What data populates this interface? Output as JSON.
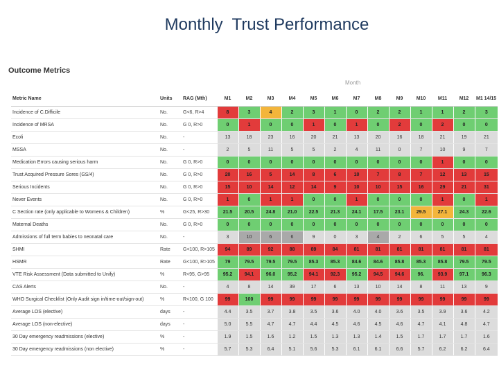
{
  "slide_title": "Monthly  Trust Performance",
  "section_title": "Outcome Metrics",
  "month_label": "Month",
  "table": {
    "headers": [
      "Metric Name",
      "Units",
      "RAG (Mth)",
      "M1",
      "M2",
      "M3",
      "M4",
      "M5",
      "M6",
      "M7",
      "M8",
      "M9",
      "M10",
      "M11",
      "M12",
      "M1 14/15"
    ],
    "rows": [
      {
        "name": "Incidence of C.Difficile",
        "units": "No.",
        "rag": "G<6, R>4",
        "values": [
          "8",
          "3",
          "4",
          "2",
          "3",
          "1",
          "0",
          "2",
          "2",
          "1",
          "1",
          "2",
          "3"
        ],
        "colors": [
          "r",
          "g",
          "a",
          "g",
          "g",
          "g",
          "g",
          "g",
          "g",
          "g",
          "g",
          "g",
          "g"
        ]
      },
      {
        "name": "Incidence of MRSA",
        "units": "No.",
        "rag": "G 0, R>0",
        "values": [
          "0",
          "1",
          "0",
          "0",
          "1",
          "0",
          "1",
          "0",
          "2",
          "0",
          "2",
          "0",
          "0"
        ],
        "colors": [
          "g",
          "r",
          "g",
          "g",
          "r",
          "g",
          "r",
          "g",
          "r",
          "g",
          "r",
          "g",
          "g"
        ]
      },
      {
        "name": "Ecoli",
        "units": "No.",
        "rag": "-",
        "values": [
          "13",
          "18",
          "23",
          "16",
          "20",
          "21",
          "13",
          "20",
          "16",
          "18",
          "21",
          "19",
          "21"
        ],
        "colors": [
          "k",
          "k",
          "k",
          "k",
          "k",
          "k",
          "k",
          "k",
          "k",
          "k",
          "k",
          "k",
          "k"
        ]
      },
      {
        "name": "MSSA",
        "units": "No.",
        "rag": "-",
        "values": [
          "2",
          "5",
          "11",
          "5",
          "5",
          "2",
          "4",
          "11",
          "0",
          "7",
          "10",
          "9",
          "7"
        ],
        "colors": [
          "k",
          "k",
          "k",
          "k",
          "k",
          "k",
          "k",
          "k",
          "k",
          "k",
          "k",
          "k",
          "k"
        ]
      },
      {
        "name": "Medication Errors causing serious harm",
        "units": "No.",
        "rag": "G 0, R>0",
        "values": [
          "0",
          "0",
          "0",
          "0",
          "0",
          "0",
          "0",
          "0",
          "0",
          "0",
          "1",
          "0",
          "0"
        ],
        "colors": [
          "g",
          "g",
          "g",
          "g",
          "g",
          "g",
          "g",
          "g",
          "g",
          "g",
          "r",
          "g",
          "g"
        ]
      },
      {
        "name": "Trust Acquired Pressure Sores (GS/4)",
        "units": "No.",
        "rag": "G 0, R>0",
        "values": [
          "20",
          "16",
          "5",
          "14",
          "8",
          "6",
          "10",
          "7",
          "8",
          "7",
          "12",
          "13",
          "15"
        ],
        "colors": [
          "r",
          "r",
          "r",
          "r",
          "r",
          "r",
          "r",
          "r",
          "r",
          "r",
          "r",
          "r",
          "r"
        ]
      },
      {
        "name": "Serious Incidents",
        "units": "No.",
        "rag": "G 0, R>0",
        "values": [
          "15",
          "10",
          "14",
          "12",
          "14",
          "9",
          "10",
          "10",
          "15",
          "16",
          "29",
          "21",
          "31"
        ],
        "colors": [
          "r",
          "r",
          "r",
          "r",
          "r",
          "r",
          "r",
          "r",
          "r",
          "r",
          "r",
          "r",
          "r"
        ]
      },
      {
        "name": "Never Events",
        "units": "No.",
        "rag": "G 0, R>0",
        "values": [
          "1",
          "0",
          "1",
          "1",
          "0",
          "0",
          "1",
          "0",
          "0",
          "0",
          "1",
          "0",
          "1"
        ],
        "colors": [
          "r",
          "g",
          "r",
          "r",
          "g",
          "g",
          "r",
          "g",
          "g",
          "g",
          "r",
          "g",
          "r"
        ]
      },
      {
        "name": "C Section rate (only applicable to Womens & Children)",
        "units": "%",
        "rag": "G<25, R>30",
        "values": [
          "21.5",
          "20.5",
          "24.8",
          "21.0",
          "22.5",
          "21.3",
          "24.1",
          "17.5",
          "23.1",
          "29.5",
          "27.1",
          "24.3",
          "22.6"
        ],
        "colors": [
          "g",
          "g",
          "g",
          "g",
          "g",
          "g",
          "g",
          "g",
          "g",
          "a",
          "a",
          "g",
          "g"
        ]
      },
      {
        "name": "Maternal Deaths",
        "units": "No.",
        "rag": "G 0, R>0",
        "values": [
          "0",
          "0",
          "0",
          "0",
          "0",
          "0",
          "0",
          "0",
          "0",
          "0",
          "0",
          "0",
          "0"
        ],
        "colors": [
          "g",
          "g",
          "g",
          "g",
          "g",
          "g",
          "g",
          "g",
          "g",
          "g",
          "g",
          "g",
          "g"
        ]
      },
      {
        "name": "Admissions of full term babies to neonatal care",
        "units": "No.",
        "rag": "-",
        "values": [
          "3",
          "10",
          "6",
          "6",
          "9",
          "0",
          "3",
          "4",
          "2",
          "6",
          "5",
          "5",
          "4"
        ],
        "colors": [
          "k",
          "d",
          "d",
          "d",
          "k",
          "k",
          "k",
          "d",
          "k",
          "k",
          "k",
          "k",
          "k"
        ]
      },
      {
        "name": "SHMI",
        "units": "Rate",
        "rag": "G<100, R>105",
        "values": [
          "94",
          "89",
          "92",
          "88",
          "89",
          "84",
          "81",
          "81",
          "81",
          "81",
          "81",
          "81",
          "81"
        ],
        "colors": [
          "r",
          "r",
          "r",
          "r",
          "r",
          "r",
          "r",
          "r",
          "r",
          "r",
          "r",
          "r",
          "r"
        ]
      },
      {
        "name": "HSMR",
        "units": "Rate",
        "rag": "G<100, R>105",
        "values": [
          "79",
          "79.5",
          "79.5",
          "79.5",
          "85.3",
          "85.3",
          "84.6",
          "84.6",
          "85.8",
          "85.3",
          "85.8",
          "79.5",
          "79.5"
        ],
        "colors": [
          "g",
          "g",
          "g",
          "g",
          "g",
          "g",
          "g",
          "g",
          "g",
          "g",
          "g",
          "g",
          "g"
        ]
      },
      {
        "name": "VTE Risk Assessment (Data submitted to Unify)",
        "units": "%",
        "rag": "R<95, G>95",
        "values": [
          "95.2",
          "94.1",
          "96.0",
          "95.2",
          "94.1",
          "92.3",
          "95.2",
          "94.5",
          "94.6",
          "96.",
          "93.9",
          "97.1",
          "96.3"
        ],
        "colors": [
          "g",
          "r",
          "g",
          "g",
          "r",
          "r",
          "g",
          "r",
          "r",
          "g",
          "r",
          "g",
          "g"
        ]
      },
      {
        "name": "CAS Alerts",
        "units": "No.",
        "rag": "-",
        "values": [
          "4",
          "8",
          "14",
          "39",
          "17",
          "6",
          "13",
          "10",
          "14",
          "8",
          "11",
          "13",
          "9"
        ],
        "colors": [
          "k",
          "k",
          "k",
          "k",
          "k",
          "k",
          "k",
          "k",
          "k",
          "k",
          "k",
          "k",
          "k"
        ]
      },
      {
        "name": "WHO Surgical Checklist (Only Audit sign in/time-out/sign-out)",
        "units": "%",
        "rag": "R<100, G 100",
        "values": [
          "99",
          "100",
          "99",
          "99",
          "99",
          "99",
          "99",
          "99",
          "99",
          "99",
          "99",
          "99",
          "99"
        ],
        "colors": [
          "r",
          "g",
          "r",
          "r",
          "r",
          "r",
          "r",
          "r",
          "r",
          "r",
          "r",
          "r",
          "r"
        ]
      },
      {
        "name": "Average LOS (elective)",
        "units": "days",
        "rag": "-",
        "values": [
          "4.4",
          "3.5",
          "3.7",
          "3.8",
          "3.5",
          "3.6",
          "4.0",
          "4.0",
          "3.6",
          "3.5",
          "3.9",
          "3.6",
          "4.2"
        ],
        "colors": [
          "k",
          "k",
          "k",
          "k",
          "k",
          "k",
          "k",
          "k",
          "k",
          "k",
          "k",
          "k",
          "k"
        ]
      },
      {
        "name": "Average LOS (non-elective)",
        "units": "days",
        "rag": "-",
        "values": [
          "5.0",
          "5.5",
          "4.7",
          "4.7",
          "4.4",
          "4.5",
          "4.6",
          "4.5",
          "4.6",
          "4.7",
          "4.1",
          "4.8",
          "4.7"
        ],
        "colors": [
          "k",
          "k",
          "k",
          "k",
          "k",
          "k",
          "k",
          "k",
          "k",
          "k",
          "k",
          "k",
          "k"
        ]
      },
      {
        "name": "30 Day emergency readmissions (elective)",
        "units": "%",
        "rag": "-",
        "values": [
          "1.9",
          "1.5",
          "1.6",
          "1.2",
          "1.5",
          "1.3",
          "1.3",
          "1.4",
          "1.5",
          "1.7",
          "1.7",
          "1.7",
          "1.6"
        ],
        "colors": [
          "k",
          "k",
          "k",
          "k",
          "k",
          "k",
          "k",
          "k",
          "k",
          "k",
          "k",
          "k",
          "k"
        ]
      },
      {
        "name": "30 Day emergency readmissions (non elective)",
        "units": "%",
        "rag": "-",
        "values": [
          "5.7",
          "5.3",
          "6.4",
          "5.1",
          "5.6",
          "5.3",
          "6.1",
          "6.1",
          "6.6",
          "5.7",
          "6.2",
          "6.2",
          "6.4"
        ],
        "colors": [
          "k",
          "k",
          "k",
          "k",
          "k",
          "k",
          "k",
          "k",
          "k",
          "k",
          "k",
          "k",
          "k"
        ]
      }
    ]
  }
}
